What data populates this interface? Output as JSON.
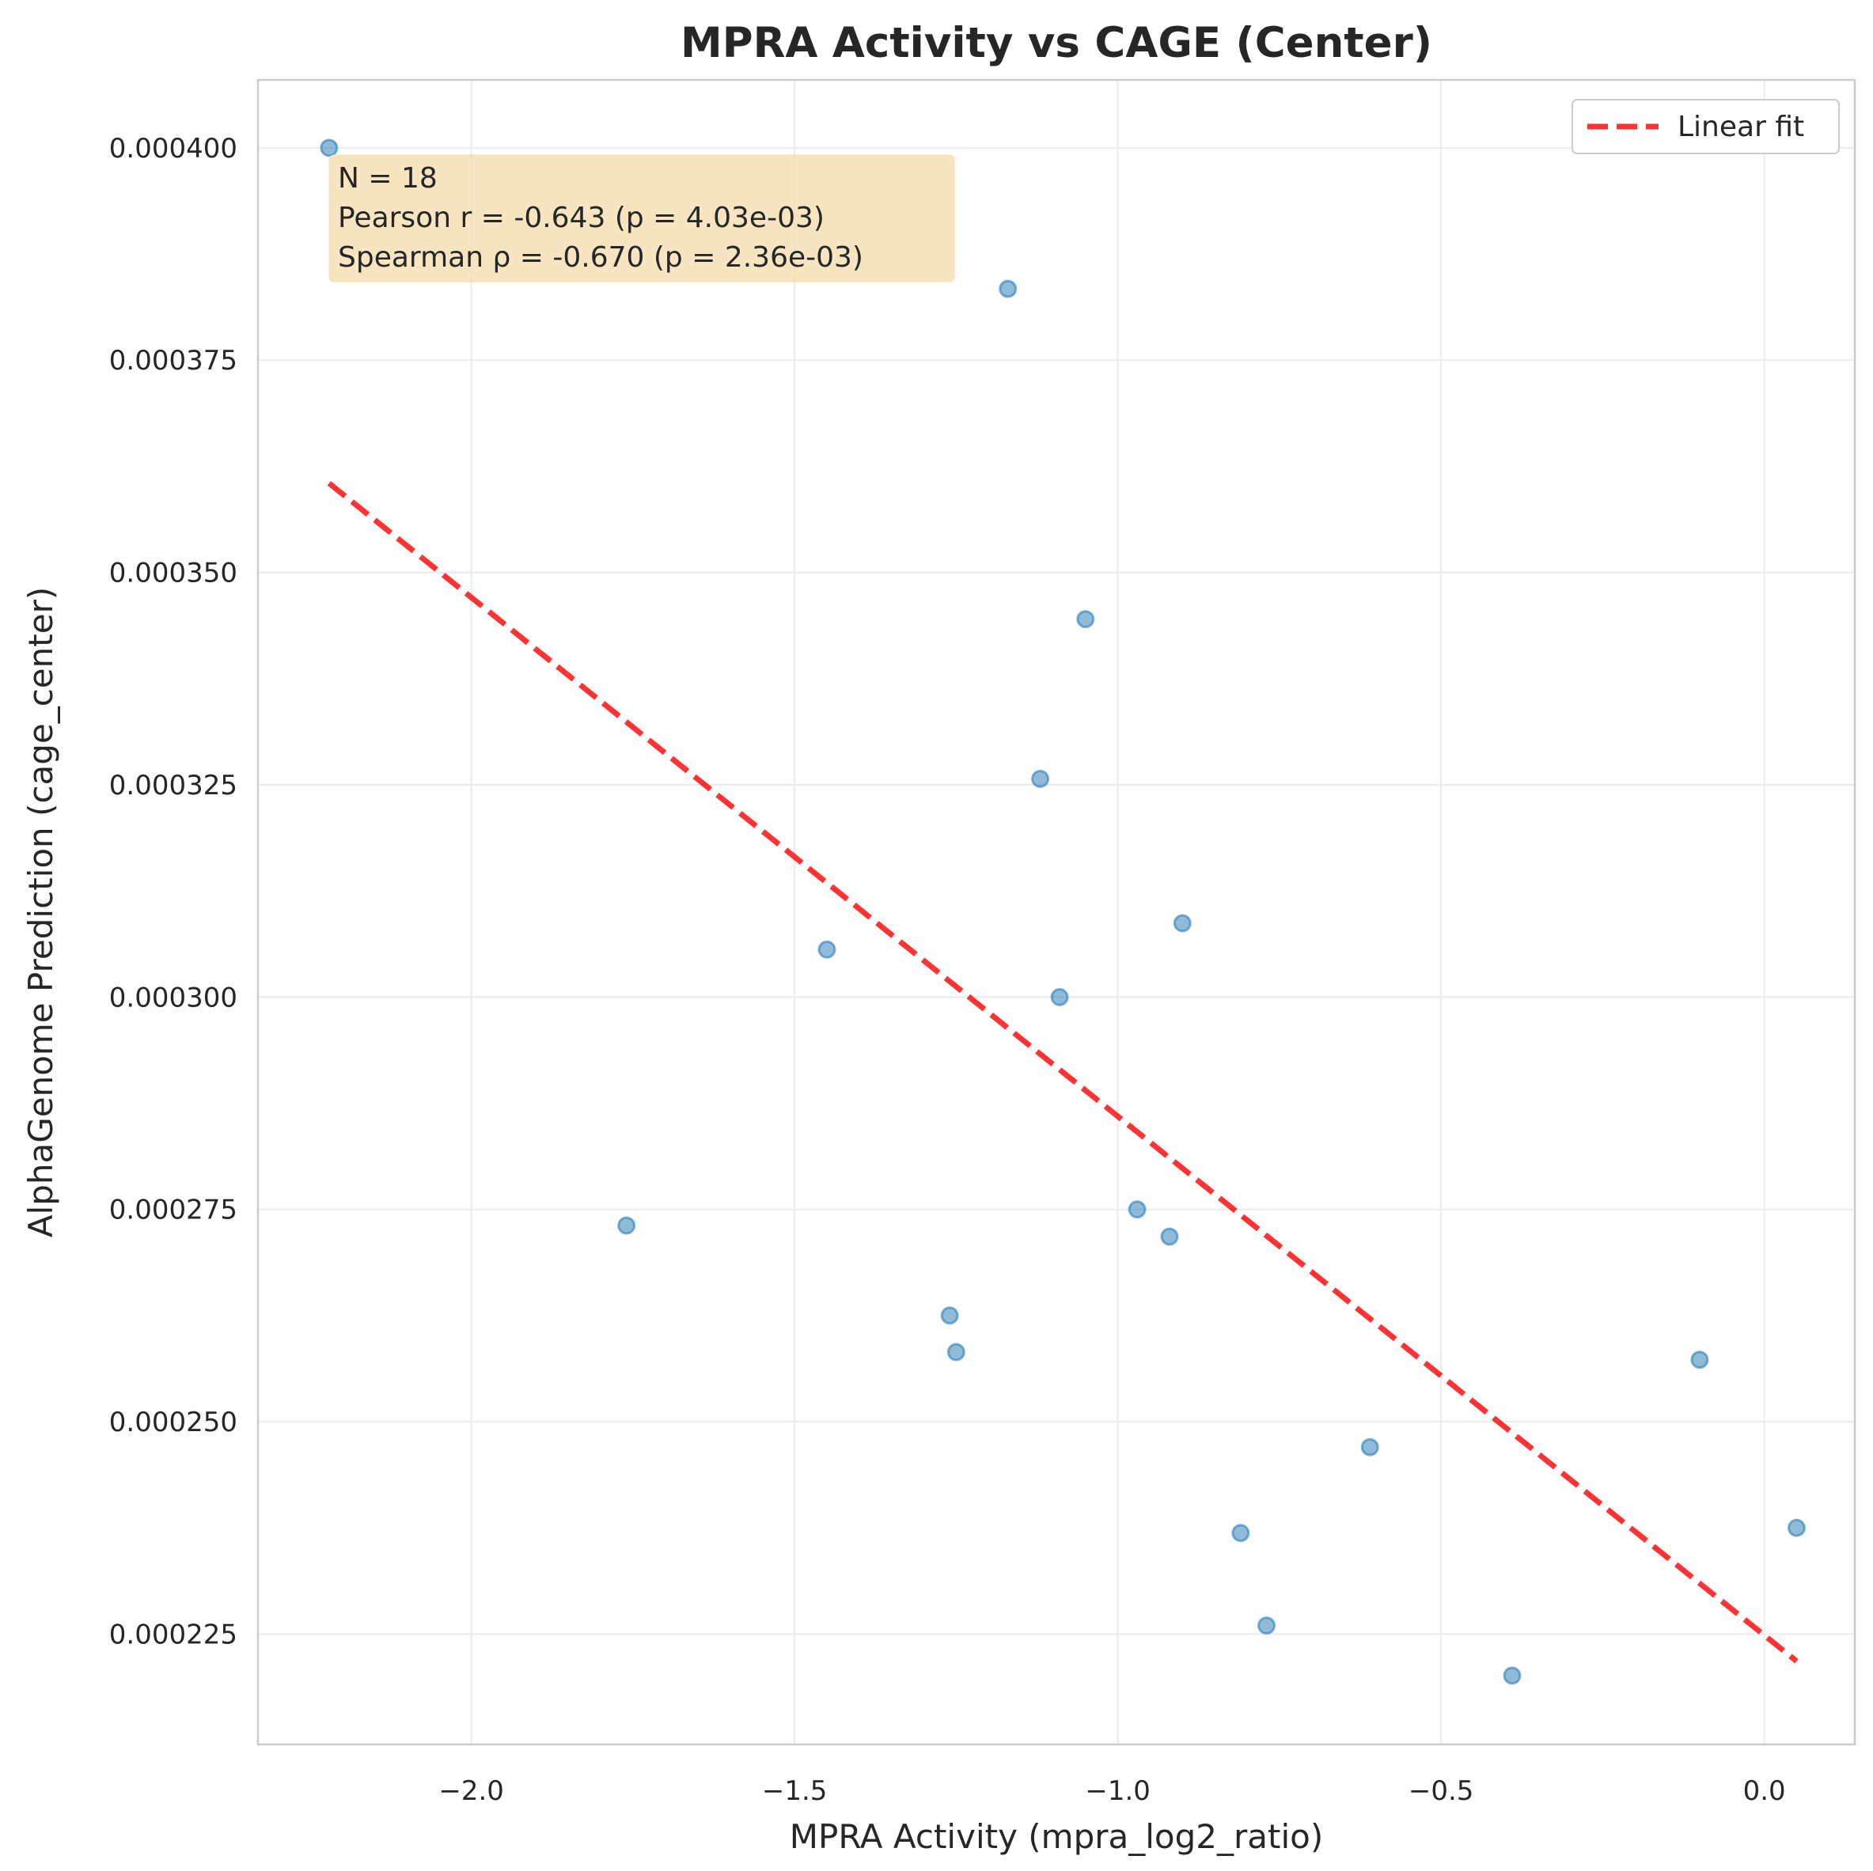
{
  "chart_data": {
    "type": "scatter",
    "title": "MPRA Activity vs CAGE (Center)",
    "xlabel": "MPRA Activity (mpra_log2_ratio)",
    "ylabel": "AlphaGenome Prediction (cage_center)",
    "xlim": [
      -2.33,
      0.14
    ],
    "ylim": [
      0.000212,
      0.000408
    ],
    "xticks": [
      -2.0,
      -1.5,
      -1.0,
      -0.5,
      0.0
    ],
    "xtick_labels": [
      "−2.0",
      "−1.5",
      "−1.0",
      "−0.5",
      "0.0"
    ],
    "yticks": [
      0.000225,
      0.00025,
      0.000275,
      0.0003,
      0.000325,
      0.00035,
      0.000375,
      0.0004
    ],
    "ytick_labels": [
      "0.000225",
      "0.000250",
      "0.000275",
      "0.000300",
      "0.000325",
      "0.000350",
      "0.000375",
      "0.000400"
    ],
    "grid": true,
    "points": [
      {
        "x": -2.22,
        "y": 0.0004
      },
      {
        "x": -1.17,
        "y": 0.0003834
      },
      {
        "x": -1.05,
        "y": 0.0003445
      },
      {
        "x": -1.12,
        "y": 0.0003257
      },
      {
        "x": -0.9,
        "y": 0.0003087
      },
      {
        "x": -1.45,
        "y": 0.0003056
      },
      {
        "x": -1.09,
        "y": 0.0003
      },
      {
        "x": -1.76,
        "y": 0.0002731
      },
      {
        "x": -0.97,
        "y": 0.000275
      },
      {
        "x": -0.92,
        "y": 0.0002718
      },
      {
        "x": -1.26,
        "y": 0.0002625
      },
      {
        "x": -1.25,
        "y": 0.0002582
      },
      {
        "x": -0.1,
        "y": 0.0002573
      },
      {
        "x": -0.61,
        "y": 0.000247
      },
      {
        "x": -0.81,
        "y": 0.0002369
      },
      {
        "x": 0.05,
        "y": 0.0002375
      },
      {
        "x": -0.77,
        "y": 0.000226
      },
      {
        "x": -0.39,
        "y": 0.0002201
      }
    ],
    "fit_line": {
      "label": "Linear fit",
      "x": [
        -2.22,
        0.05
      ],
      "y": [
        0.0003605,
        0.0002218
      ],
      "color": "#ff0000"
    },
    "point_color": "#1f77b4",
    "legend_placement": "top-right",
    "stats_lines": [
      "N = 18",
      "Pearson r = -0.643 (p = 4.03e-03)",
      "Spearman ρ = -0.670 (p = 2.36e-03)"
    ],
    "stats_box_color": "#f5deb3"
  }
}
